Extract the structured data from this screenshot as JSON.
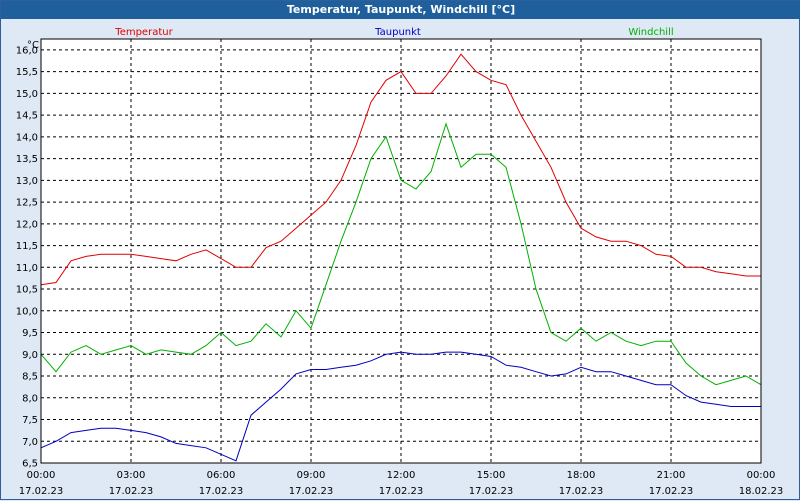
{
  "chart_data": {
    "type": "line",
    "title": "Temperatur, Taupunkt, Windchill [°C]",
    "yunit": "°C",
    "ylim": [
      6.5,
      16.25
    ],
    "y_ticks": [
      "6,5",
      "7,0",
      "7,5",
      "8,0",
      "8,5",
      "9,0",
      "9,5",
      "10,0",
      "10,5",
      "11,0",
      "11,5",
      "12,0",
      "12,5",
      "13,0",
      "13,5",
      "14,0",
      "14,5",
      "15,0",
      "15,5",
      "16,0"
    ],
    "x_ticks": [
      {
        "time": "00:00",
        "date": "17.02.23"
      },
      {
        "time": "03:00",
        "date": "17.02.23"
      },
      {
        "time": "06:00",
        "date": "17.02.23"
      },
      {
        "time": "09:00",
        "date": "17.02.23"
      },
      {
        "time": "12:00",
        "date": "17.02.23"
      },
      {
        "time": "15:00",
        "date": "17.02.23"
      },
      {
        "time": "18:00",
        "date": "17.02.23"
      },
      {
        "time": "21:00",
        "date": "17.02.23"
      },
      {
        "time": "00:00",
        "date": "18.02.23"
      }
    ],
    "x_hours": [
      0,
      0.5,
      1,
      1.5,
      2,
      2.5,
      3,
      3.5,
      4,
      4.5,
      5,
      5.5,
      6,
      6.5,
      7,
      7.5,
      8,
      8.5,
      9,
      9.5,
      10,
      10.5,
      11,
      11.5,
      12,
      12.5,
      13,
      13.5,
      14,
      14.5,
      15,
      15.5,
      16,
      16.5,
      17,
      17.5,
      18,
      18.5,
      19,
      19.5,
      20,
      20.5,
      21,
      21.5,
      22,
      22.5,
      23,
      23.5,
      24
    ],
    "grid": true,
    "legend_position": "top",
    "series": [
      {
        "name": "Temperatur",
        "color": "#e00000",
        "values": [
          10.6,
          10.65,
          11.15,
          11.25,
          11.3,
          11.3,
          11.3,
          11.25,
          11.2,
          11.15,
          11.3,
          11.4,
          11.2,
          11.0,
          11.0,
          11.45,
          11.6,
          11.9,
          12.2,
          12.5,
          13.0,
          13.8,
          14.8,
          15.3,
          15.5,
          15.0,
          15.0,
          15.4,
          15.9,
          15.5,
          15.3,
          15.2,
          14.5,
          13.9,
          13.3,
          12.5,
          11.9,
          11.7,
          11.6,
          11.6,
          11.5,
          11.3,
          11.25,
          11.0,
          11.0,
          10.9,
          10.85,
          10.8,
          10.8
        ]
      },
      {
        "name": "Taupunkt",
        "color": "#0000c0",
        "values": [
          6.85,
          7.0,
          7.2,
          7.25,
          7.3,
          7.3,
          7.25,
          7.2,
          7.1,
          6.95,
          6.9,
          6.85,
          6.7,
          6.55,
          7.6,
          7.9,
          8.2,
          8.55,
          8.65,
          8.65,
          8.7,
          8.75,
          8.85,
          9.0,
          9.05,
          9.0,
          9.0,
          9.05,
          9.05,
          9.0,
          8.95,
          8.75,
          8.7,
          8.6,
          8.5,
          8.55,
          8.7,
          8.6,
          8.6,
          8.5,
          8.4,
          8.3,
          8.3,
          8.05,
          7.9,
          7.85,
          7.8,
          7.8,
          7.8
        ]
      },
      {
        "name": "Windchill",
        "color": "#00b000",
        "values": [
          9.0,
          8.6,
          9.05,
          9.2,
          9.0,
          9.1,
          9.2,
          9.0,
          9.1,
          9.05,
          9.0,
          9.2,
          9.5,
          9.2,
          9.3,
          9.7,
          9.4,
          10.0,
          9.6,
          10.6,
          11.6,
          12.5,
          13.5,
          14.0,
          13.0,
          12.8,
          13.2,
          14.3,
          13.3,
          13.6,
          13.6,
          13.3,
          12.0,
          10.5,
          9.5,
          9.3,
          9.6,
          9.3,
          9.5,
          9.3,
          9.2,
          9.3,
          9.3,
          8.8,
          8.5,
          8.3,
          8.4,
          8.5,
          8.3
        ]
      }
    ]
  }
}
